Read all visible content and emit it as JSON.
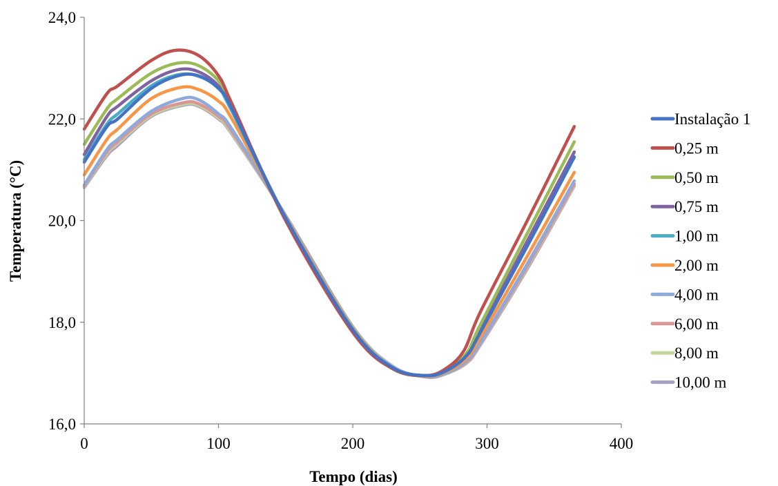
{
  "chart_data": {
    "type": "line",
    "xlabel": "Tempo (dias)",
    "ylabel": "Temperatura (°C)",
    "xlim": [
      0,
      400
    ],
    "ylim": [
      16,
      24
    ],
    "xticks": [
      0,
      100,
      200,
      300,
      400
    ],
    "xtick_labels": [
      "0",
      "100",
      "200",
      "300",
      "400"
    ],
    "yticks": [
      16,
      18,
      20,
      22,
      24
    ],
    "ytick_labels": [
      "16,0",
      "18,0",
      "20,0",
      "22,0",
      "24,0"
    ],
    "grid": false,
    "legend_position": "right",
    "series": [
      {
        "name": "Instalação 1",
        "color": "#4472C4",
        "x": [
          0,
          17,
          25,
          50,
          70,
          85,
          100,
          110,
          150,
          200,
          230,
          255,
          270,
          285,
          295,
          330,
          365
        ],
        "y": [
          21.15,
          21.85,
          22.0,
          22.6,
          22.85,
          22.85,
          22.6,
          22.2,
          20.05,
          17.85,
          17.1,
          16.95,
          17.05,
          17.35,
          17.8,
          19.5,
          21.25
        ]
      },
      {
        "name": "0,25 m",
        "color": "#C0504D",
        "x": [
          0,
          17,
          25,
          50,
          68,
          85,
          100,
          110,
          150,
          200,
          230,
          255,
          270,
          283,
          295,
          330,
          365
        ],
        "y": [
          21.8,
          22.5,
          22.65,
          23.15,
          23.35,
          23.25,
          22.85,
          22.3,
          20.0,
          17.8,
          17.08,
          16.95,
          17.1,
          17.45,
          18.2,
          20.0,
          21.85
        ]
      },
      {
        "name": "0,50 m",
        "color": "#9BBB59",
        "x": [
          0,
          17,
          25,
          50,
          70,
          85,
          100,
          110,
          150,
          200,
          230,
          255,
          270,
          285,
          295,
          330,
          365
        ],
        "y": [
          21.5,
          22.2,
          22.4,
          22.9,
          23.1,
          23.05,
          22.75,
          22.25,
          20.05,
          17.83,
          17.08,
          16.95,
          17.07,
          17.4,
          17.95,
          19.75,
          21.55
        ]
      },
      {
        "name": "0,75 m",
        "color": "#8064A2",
        "x": [
          0,
          17,
          25,
          50,
          70,
          85,
          100,
          110,
          150,
          200,
          230,
          255,
          270,
          285,
          295,
          330,
          365
        ],
        "y": [
          21.3,
          22.05,
          22.25,
          22.75,
          22.97,
          22.93,
          22.65,
          22.2,
          20.05,
          17.85,
          17.1,
          16.95,
          17.06,
          17.38,
          17.85,
          19.6,
          21.35
        ]
      },
      {
        "name": "1,00 m",
        "color": "#4BACC6",
        "x": [
          0,
          17,
          25,
          50,
          70,
          85,
          100,
          110,
          150,
          200,
          230,
          255,
          270,
          285,
          295,
          330,
          365
        ],
        "y": [
          21.2,
          21.9,
          22.1,
          22.65,
          22.87,
          22.84,
          22.6,
          22.15,
          20.06,
          17.86,
          17.1,
          16.95,
          17.05,
          17.35,
          17.8,
          19.5,
          21.25
        ]
      },
      {
        "name": "2,00 m",
        "color": "#F79646",
        "x": [
          0,
          17,
          25,
          50,
          72,
          85,
          100,
          110,
          150,
          200,
          230,
          255,
          270,
          285,
          295,
          330,
          365
        ],
        "y": [
          20.9,
          21.6,
          21.8,
          22.4,
          22.62,
          22.58,
          22.35,
          22.0,
          20.08,
          17.88,
          17.1,
          16.94,
          17.03,
          17.3,
          17.7,
          19.3,
          20.95
        ]
      },
      {
        "name": "4,00 m",
        "color": "#8EA9DB",
        "x": [
          0,
          17,
          25,
          50,
          73,
          85,
          100,
          110,
          150,
          200,
          230,
          255,
          270,
          285,
          295,
          330,
          365
        ],
        "y": [
          20.7,
          21.4,
          21.6,
          22.15,
          22.4,
          22.38,
          22.1,
          21.8,
          20.1,
          17.9,
          17.12,
          16.93,
          17.0,
          17.25,
          17.6,
          19.15,
          20.78
        ]
      },
      {
        "name": "6,00 m",
        "color": "#DA9694",
        "x": [
          0,
          17,
          25,
          50,
          74,
          85,
          100,
          110,
          150,
          200,
          230,
          255,
          270,
          285,
          295,
          330,
          365
        ],
        "y": [
          20.68,
          21.35,
          21.55,
          22.1,
          22.32,
          22.3,
          22.05,
          21.75,
          20.1,
          17.9,
          17.12,
          16.93,
          17.0,
          17.22,
          17.58,
          19.1,
          20.72
        ]
      },
      {
        "name": "8,00 m",
        "color": "#C4D79B",
        "x": [
          0,
          17,
          25,
          50,
          74,
          85,
          100,
          110,
          150,
          200,
          230,
          255,
          270,
          285,
          295,
          330,
          365
        ],
        "y": [
          20.67,
          21.32,
          21.52,
          22.07,
          22.29,
          22.27,
          22.02,
          21.72,
          20.1,
          17.92,
          17.13,
          16.93,
          16.99,
          17.21,
          17.57,
          19.08,
          20.7
        ]
      },
      {
        "name": "10,00 m",
        "color": "#A6A0C4",
        "x": [
          0,
          17,
          25,
          50,
          74,
          85,
          100,
          110,
          150,
          200,
          230,
          255,
          270,
          285,
          295,
          330,
          365
        ],
        "y": [
          20.65,
          21.28,
          21.48,
          22.05,
          22.27,
          22.25,
          22.0,
          21.7,
          20.1,
          17.92,
          17.13,
          16.92,
          16.99,
          17.2,
          17.55,
          19.05,
          20.68
        ]
      }
    ]
  }
}
